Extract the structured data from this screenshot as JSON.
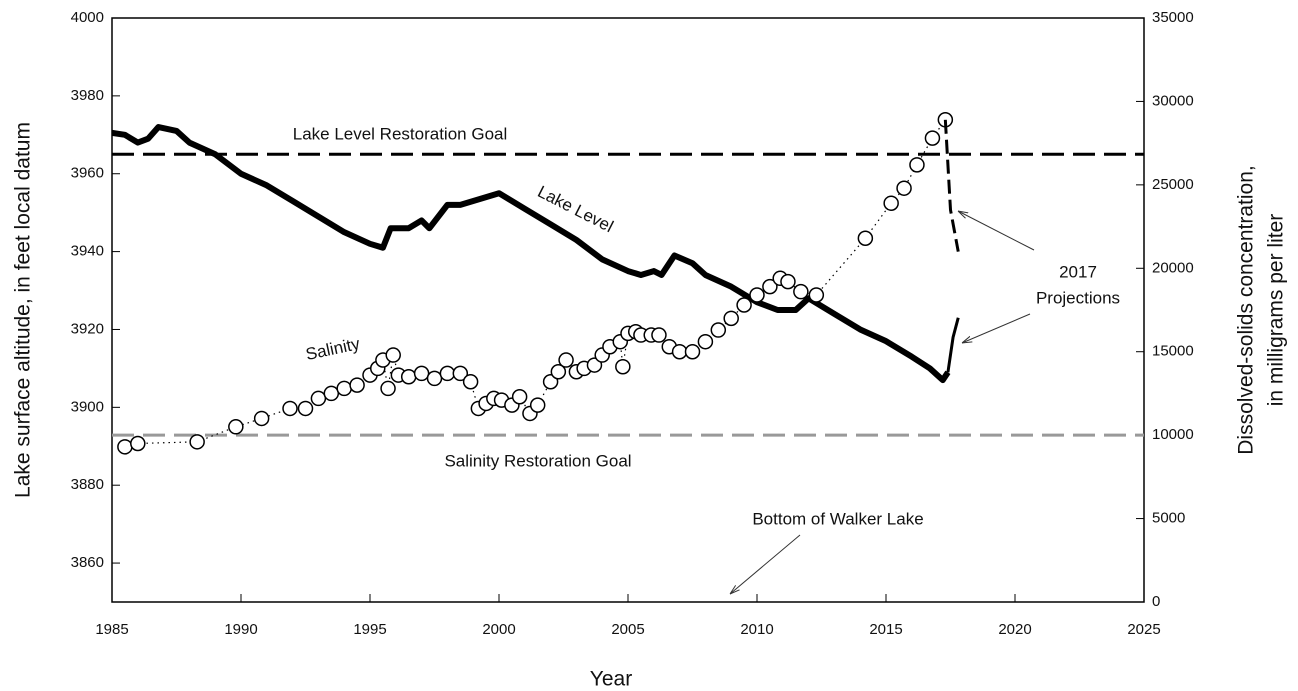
{
  "chart_data": {
    "type": "line",
    "xlabel": "Year",
    "ylabel": "Lake surface altitude, in feet local datum",
    "y2label": [
      "Dissolved-solids concentration,",
      "in milligrams per liter"
    ],
    "xlim": [
      1985,
      2025
    ],
    "xticks": [
      1985,
      1990,
      1995,
      2000,
      2005,
      2010,
      2015,
      2020,
      2025
    ],
    "ylim": [
      3850,
      4000
    ],
    "yticks": [
      3860,
      3880,
      3900,
      3920,
      3940,
      3960,
      3980,
      4000
    ],
    "y2lim": [
      0,
      35000
    ],
    "y2ticks": [
      0,
      5000,
      10000,
      15000,
      20000,
      25000,
      30000,
      35000
    ],
    "series": [
      {
        "name": "Lake Level",
        "color": "#000000",
        "axis": "y",
        "x": [
          1985,
          1985.5,
          1986,
          1986.4,
          1986.8,
          1987.5,
          1988,
          1989,
          1990,
          1991,
          1992,
          1993,
          1994,
          1995,
          1995.5,
          1995.8,
          1996.5,
          1997,
          1997.3,
          1998,
          1998.5,
          1999.5,
          2000,
          2001,
          2002,
          2003,
          2004,
          2005,
          2005.5,
          2006,
          2006.3,
          2006.8,
          2007.5,
          2008,
          2009,
          2010,
          2010.8,
          2011.5,
          2012,
          2013,
          2014,
          2015,
          2016,
          2016.7,
          2017.2,
          2017.4
        ],
        "values": [
          3970.5,
          3970,
          3968,
          3969,
          3972,
          3971,
          3968,
          3965,
          3960,
          3957,
          3953,
          3949,
          3945,
          3942,
          3941,
          3946,
          3946,
          3948,
          3946,
          3952,
          3952,
          3954,
          3955,
          3951,
          3947,
          3943,
          3938,
          3935,
          3934,
          3935,
          3934,
          3939,
          3937,
          3934,
          3931,
          3927,
          3925,
          3925,
          3928,
          3924,
          3920,
          3917,
          3913,
          3910,
          3907,
          3909
        ]
      },
      {
        "name": "Salinity",
        "color": "#000000",
        "axis": "y2",
        "x": [
          1985.5,
          1986,
          1988.3,
          1989.8,
          1990.8,
          1991.9,
          1992.5,
          1993,
          1993.5,
          1994,
          1994.5,
          1995,
          1995.3,
          1995.5,
          1995.7,
          1995.9,
          1996.1,
          1996.5,
          1997,
          1997.5,
          1998,
          1998.5,
          1998.9,
          1999.2,
          1999.5,
          1999.8,
          2000.1,
          2000.5,
          2000.8,
          2001.2,
          2001.5,
          2002,
          2002.3,
          2002.6,
          2003,
          2003.3,
          2003.7,
          2004,
          2004.3,
          2004.7,
          2004.8,
          2005,
          2005.3,
          2005.5,
          2005.9,
          2006.2,
          2006.6,
          2007,
          2007.5,
          2008,
          2008.5,
          2009,
          2009.5,
          2010,
          2010.5,
          2010.9,
          2011.2,
          2011.7,
          2012.3,
          2014.2,
          2015.2,
          2015.7,
          2016.2,
          2016.8,
          2017.3
        ],
        "values": [
          9300,
          9500,
          9600,
          10500,
          11000,
          11600,
          11600,
          12200,
          12500,
          12800,
          13000,
          13600,
          14000,
          14500,
          12800,
          14800,
          13600,
          13500,
          13700,
          13400,
          13700,
          13700,
          13200,
          11600,
          11900,
          12200,
          12100,
          11800,
          12300,
          11300,
          11800,
          13200,
          13800,
          14500,
          13800,
          14000,
          14200,
          14800,
          15300,
          15600,
          14100,
          16100,
          16200,
          16000,
          16000,
          16000,
          15300,
          15000,
          15000,
          15600,
          16300,
          17000,
          17800,
          18400,
          18900,
          19400,
          19200,
          18600,
          18400,
          21800,
          23900,
          24800,
          26200,
          27800,
          28900
        ]
      },
      {
        "color": "#000000",
        "axis": "y2",
        "dash": true,
        "x": [
          2017.3,
          2017.5,
          2017.8
        ],
        "values": [
          28900,
          23500,
          21000
        ]
      },
      {
        "color": "#000000",
        "axis": "y",
        "x": [
          2017.4,
          2017.6,
          2017.8
        ],
        "values": [
          3909,
          3918,
          3923
        ]
      }
    ],
    "lake_level_goal": 3965,
    "salinity_goal": 10000,
    "annotations": {
      "lake_goal": "Lake Level Restoration Goal",
      "salinity_goal": "Salinity Restoration Goal",
      "bottom": "Bottom of Walker Lake",
      "projections": [
        "2017",
        "Projections"
      ]
    }
  }
}
